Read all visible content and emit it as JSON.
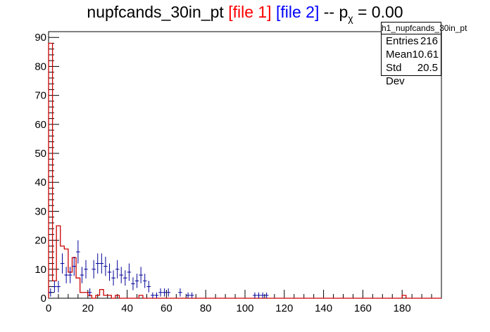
{
  "title": {
    "main": "nupfcands_30in_pt",
    "file1": "[file 1]",
    "file2": "[file 2]",
    "sep": " -- p",
    "chi": "χ",
    "eq": " = 0.00"
  },
  "stats": {
    "name": "h1_nupfcands_30in_pt",
    "entries_label": "Entries",
    "entries_value": "216",
    "mean_label": "Mean",
    "mean_value": "10.61",
    "std_label": "Std Dev",
    "std_value": "20.5"
  },
  "colors": {
    "file1": "#cc0000",
    "file2": "#000099"
  },
  "chart_data": {
    "type": "bar",
    "xlim": [
      0,
      200
    ],
    "ylim": [
      0,
      92
    ],
    "bin_width": 2,
    "xticks": [
      0,
      20,
      40,
      60,
      80,
      100,
      120,
      140,
      160,
      180
    ],
    "yticks": [
      0,
      10,
      20,
      30,
      40,
      50,
      60,
      70,
      80,
      90
    ],
    "series": [
      {
        "values": [
          88,
          6,
          25,
          18,
          17,
          9,
          14,
          7,
          2,
          2,
          1,
          0,
          1,
          3,
          1,
          1,
          0,
          1,
          0,
          0,
          0,
          0,
          0,
          1,
          0,
          0,
          0,
          0,
          0,
          0,
          0,
          0,
          0,
          0,
          0,
          0,
          0,
          0,
          0,
          0,
          0,
          0,
          0,
          0,
          0,
          0,
          0,
          0,
          0,
          0,
          0,
          0,
          0,
          0,
          0,
          0,
          0,
          0,
          0,
          0,
          0,
          0,
          0,
          0,
          0,
          0,
          0,
          0,
          0,
          0,
          0,
          0,
          0,
          0,
          0,
          0,
          0,
          0,
          0,
          0,
          0,
          0,
          0,
          0,
          0,
          0,
          0,
          0,
          0,
          0,
          1,
          0,
          0,
          0,
          0,
          0,
          0,
          0,
          0,
          0
        ]
      },
      {
        "values": [
          2,
          4,
          4,
          12,
          8,
          8,
          11,
          16,
          8,
          10,
          2,
          10,
          12,
          12,
          11,
          9,
          7,
          10,
          8,
          7,
          9,
          5,
          6,
          8,
          6,
          4,
          1,
          1,
          2,
          2,
          2,
          0,
          0,
          2,
          0,
          1,
          1,
          0,
          0,
          0,
          0,
          0,
          0,
          0,
          0,
          0,
          0,
          0,
          0,
          0,
          0,
          0,
          1,
          1,
          1,
          1,
          0,
          0,
          0,
          0
        ]
      }
    ]
  }
}
